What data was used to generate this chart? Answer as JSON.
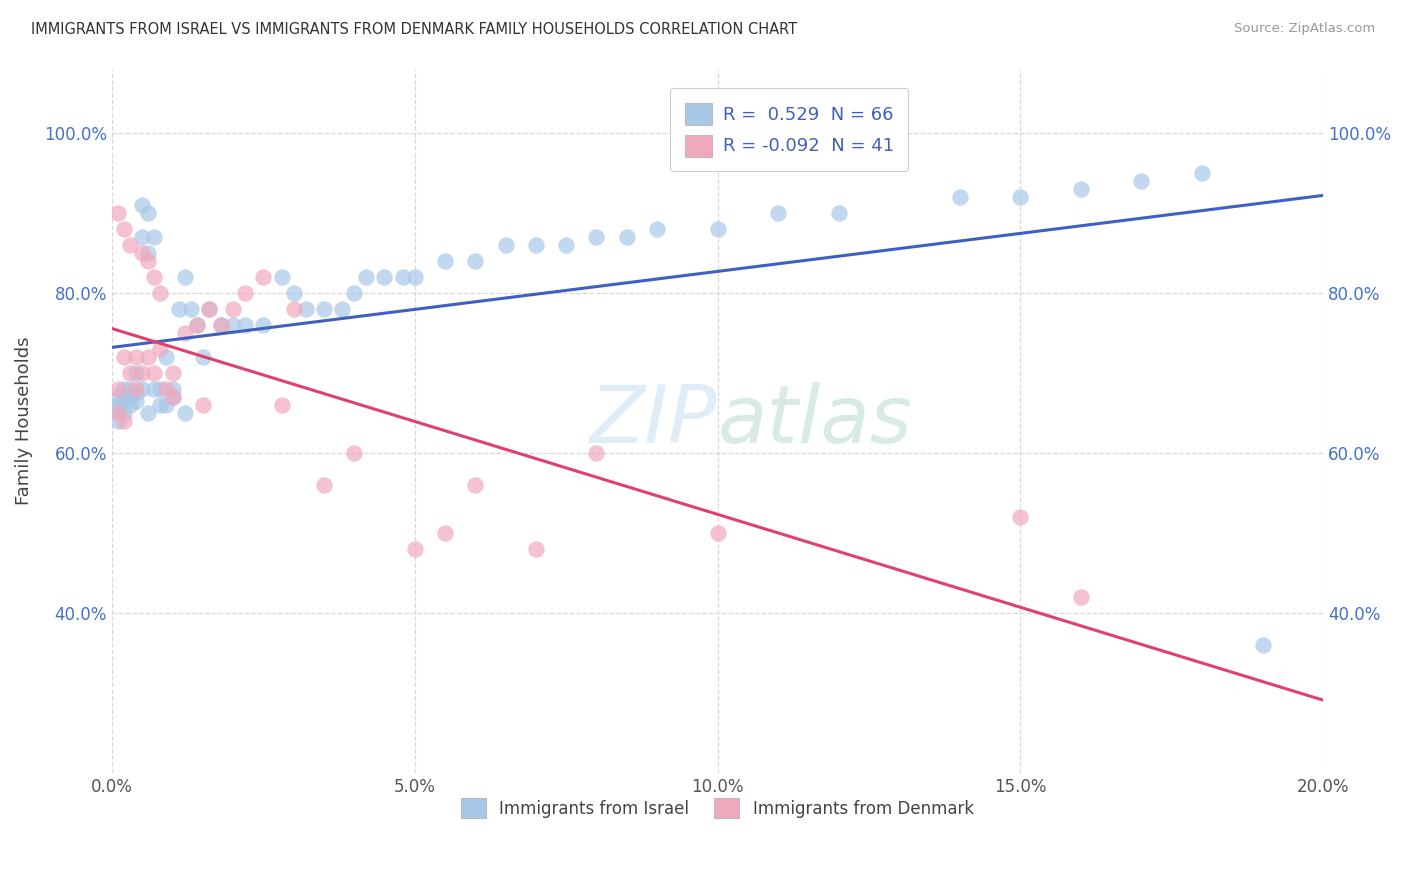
{
  "title": "IMMIGRANTS FROM ISRAEL VS IMMIGRANTS FROM DENMARK FAMILY HOUSEHOLDS CORRELATION CHART",
  "source": "Source: ZipAtlas.com",
  "ylabel": "Family Households",
  "legend_label1": "Immigrants from Israel",
  "legend_label2": "Immigrants from Denmark",
  "R1_label": "R =  0.529  N = 66",
  "R2_label": "R = -0.092  N = 41",
  "xlim": [
    0.0,
    0.2
  ],
  "ylim": [
    0.2,
    1.08
  ],
  "xticks": [
    0.0,
    0.05,
    0.1,
    0.15,
    0.2
  ],
  "yticks": [
    0.4,
    0.6,
    0.8,
    1.0
  ],
  "ytick_labels": [
    "40.0%",
    "60.0%",
    "80.0%",
    "100.0%"
  ],
  "xtick_labels": [
    "0.0%",
    "5.0%",
    "10.0%",
    "15.0%",
    "20.0%"
  ],
  "color1": "#a8c8e8",
  "color2": "#f0a8bc",
  "line_color1": "#4060c0",
  "line_color2": "#e04070",
  "tick_color": "#4472c4",
  "israel_x": [
    0.001,
    0.001,
    0.001,
    0.001,
    0.002,
    0.002,
    0.002,
    0.002,
    0.003,
    0.003,
    0.003,
    0.004,
    0.004,
    0.004,
    0.005,
    0.005,
    0.005,
    0.006,
    0.006,
    0.006,
    0.007,
    0.007,
    0.008,
    0.008,
    0.009,
    0.009,
    0.01,
    0.01,
    0.011,
    0.012,
    0.012,
    0.013,
    0.014,
    0.015,
    0.016,
    0.018,
    0.02,
    0.022,
    0.025,
    0.028,
    0.03,
    0.032,
    0.035,
    0.038,
    0.04,
    0.042,
    0.045,
    0.048,
    0.05,
    0.055,
    0.06,
    0.065,
    0.07,
    0.075,
    0.08,
    0.085,
    0.09,
    0.1,
    0.11,
    0.12,
    0.14,
    0.15,
    0.16,
    0.17,
    0.18,
    0.19
  ],
  "israel_y": [
    0.66,
    0.64,
    0.67,
    0.655,
    0.665,
    0.65,
    0.67,
    0.68,
    0.66,
    0.67,
    0.68,
    0.665,
    0.675,
    0.7,
    0.68,
    0.91,
    0.87,
    0.65,
    0.9,
    0.85,
    0.68,
    0.87,
    0.66,
    0.68,
    0.66,
    0.72,
    0.67,
    0.68,
    0.78,
    0.65,
    0.82,
    0.78,
    0.76,
    0.72,
    0.78,
    0.76,
    0.76,
    0.76,
    0.76,
    0.82,
    0.8,
    0.78,
    0.78,
    0.78,
    0.8,
    0.82,
    0.82,
    0.82,
    0.82,
    0.84,
    0.84,
    0.86,
    0.86,
    0.86,
    0.87,
    0.87,
    0.88,
    0.88,
    0.9,
    0.9,
    0.92,
    0.92,
    0.93,
    0.94,
    0.95,
    0.36
  ],
  "denmark_x": [
    0.001,
    0.001,
    0.001,
    0.002,
    0.002,
    0.002,
    0.003,
    0.003,
    0.004,
    0.004,
    0.005,
    0.005,
    0.006,
    0.006,
    0.007,
    0.007,
    0.008,
    0.008,
    0.009,
    0.01,
    0.01,
    0.012,
    0.014,
    0.015,
    0.016,
    0.018,
    0.02,
    0.022,
    0.025,
    0.028,
    0.03,
    0.035,
    0.04,
    0.05,
    0.055,
    0.06,
    0.07,
    0.08,
    0.1,
    0.15,
    0.16
  ],
  "denmark_y": [
    0.65,
    0.68,
    0.9,
    0.64,
    0.72,
    0.88,
    0.7,
    0.86,
    0.68,
    0.72,
    0.7,
    0.85,
    0.72,
    0.84,
    0.7,
    0.82,
    0.73,
    0.8,
    0.68,
    0.67,
    0.7,
    0.75,
    0.76,
    0.66,
    0.78,
    0.76,
    0.78,
    0.8,
    0.82,
    0.66,
    0.78,
    0.56,
    0.6,
    0.48,
    0.5,
    0.56,
    0.48,
    0.6,
    0.5,
    0.52,
    0.42
  ]
}
